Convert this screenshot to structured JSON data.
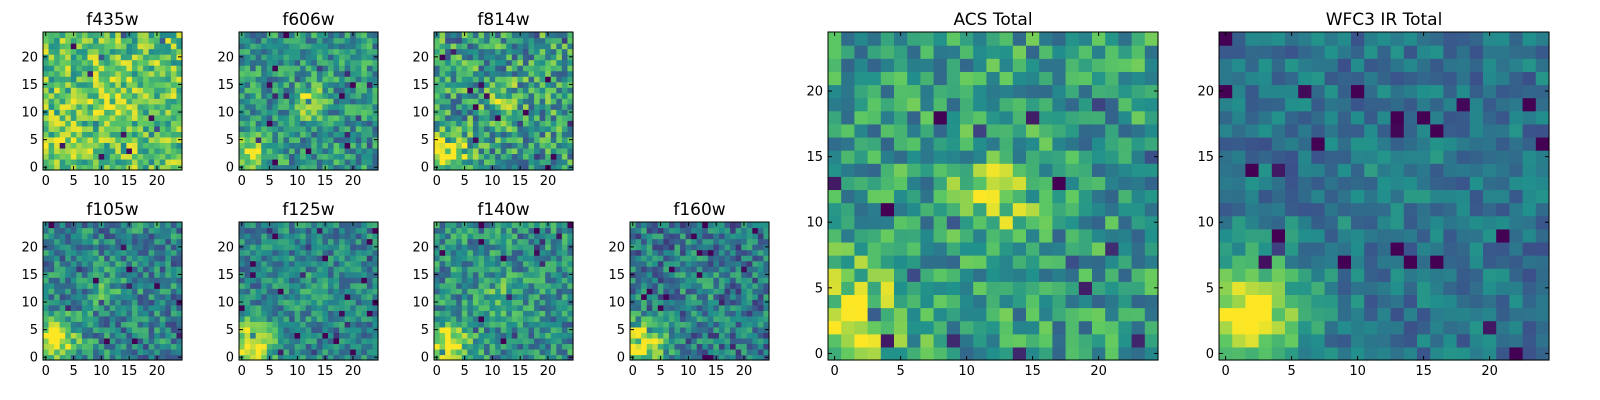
{
  "figure": {
    "background": "#ffffff"
  },
  "colormap": {
    "name": "viridis",
    "stops": [
      "#440154",
      "#3b528b",
      "#21918c",
      "#5ec962",
      "#fde725"
    ]
  },
  "chart_data": [
    {
      "id": "f435w",
      "type": "heatmap",
      "title": "f435w",
      "grid_size": 25,
      "xlim": [
        -0.5,
        24.5
      ],
      "ylim": [
        -0.5,
        24.5
      ],
      "xticks": [
        0,
        5,
        10,
        15,
        20
      ],
      "yticks": [
        0,
        5,
        10,
        15,
        20
      ],
      "value_range": [
        0,
        1
      ],
      "pattern": {
        "base": 0.72,
        "noise": 0.26,
        "blob": {
          "x": 12,
          "y": 12,
          "amp": 0.1,
          "sigma": 3
        },
        "corner": {
          "x": 1.5,
          "y": 2,
          "amp": 0.08,
          "sigma": 3
        },
        "seed": 11
      }
    },
    {
      "id": "f606w",
      "type": "heatmap",
      "title": "f606w",
      "grid_size": 25,
      "xlim": [
        -0.5,
        24.5
      ],
      "ylim": [
        -0.5,
        24.5
      ],
      "xticks": [
        0,
        5,
        10,
        15,
        20
      ],
      "yticks": [
        0,
        5,
        10,
        15,
        20
      ],
      "value_range": [
        0,
        1
      ],
      "pattern": {
        "base": 0.52,
        "noise": 0.24,
        "blob": {
          "x": 12,
          "y": 12,
          "amp": 0.38,
          "sigma": 2
        },
        "corner": {
          "x": 1.5,
          "y": 2.5,
          "amp": 0.42,
          "sigma": 2.5
        },
        "seed": 23
      }
    },
    {
      "id": "f814w",
      "type": "heatmap",
      "title": "f814w",
      "grid_size": 25,
      "xlim": [
        -0.5,
        24.5
      ],
      "ylim": [
        -0.5,
        24.5
      ],
      "xticks": [
        0,
        5,
        10,
        15,
        20
      ],
      "yticks": [
        0,
        5,
        10,
        15,
        20
      ],
      "value_range": [
        0,
        1
      ],
      "pattern": {
        "base": 0.55,
        "noise": 0.3,
        "blob": {
          "x": 12,
          "y": 12,
          "amp": 0.25,
          "sigma": 2.2
        },
        "corner": {
          "x": 1.5,
          "y": 2.5,
          "amp": 0.42,
          "sigma": 2.8
        },
        "seed": 37
      }
    },
    {
      "id": "f105w",
      "type": "heatmap",
      "title": "f105w",
      "grid_size": 25,
      "xlim": [
        -0.5,
        24.5
      ],
      "ylim": [
        -0.5,
        24.5
      ],
      "xticks": [
        0,
        5,
        10,
        15,
        20
      ],
      "yticks": [
        0,
        5,
        10,
        15,
        20
      ],
      "value_range": [
        0,
        1
      ],
      "pattern": {
        "base": 0.45,
        "noise": 0.24,
        "blob": {
          "x": 11,
          "y": 12,
          "amp": 0.15,
          "sigma": 2.5
        },
        "corner": {
          "x": 1.5,
          "y": 3,
          "amp": 0.55,
          "sigma": 3
        },
        "seed": 53
      }
    },
    {
      "id": "f125w",
      "type": "heatmap",
      "title": "f125w",
      "grid_size": 25,
      "xlim": [
        -0.5,
        24.5
      ],
      "ylim": [
        -0.5,
        24.5
      ],
      "xticks": [
        0,
        5,
        10,
        15,
        20
      ],
      "yticks": [
        0,
        5,
        10,
        15,
        20
      ],
      "value_range": [
        0,
        1
      ],
      "pattern": {
        "base": 0.45,
        "noise": 0.2,
        "blob": {
          "x": 12,
          "y": 12,
          "amp": 0.1,
          "sigma": 2.5
        },
        "corner": {
          "x": 1.5,
          "y": 2.5,
          "amp": 0.55,
          "sigma": 3
        },
        "seed": 71
      }
    },
    {
      "id": "f140w",
      "type": "heatmap",
      "title": "f140w",
      "grid_size": 25,
      "xlim": [
        -0.5,
        24.5
      ],
      "ylim": [
        -0.5,
        24.5
      ],
      "xticks": [
        0,
        5,
        10,
        15,
        20
      ],
      "yticks": [
        0,
        5,
        10,
        15,
        20
      ],
      "value_range": [
        0,
        1
      ],
      "pattern": {
        "base": 0.5,
        "noise": 0.24,
        "blob": {
          "x": 12,
          "y": 12,
          "amp": 0.15,
          "sigma": 2.5
        },
        "corner": {
          "x": 1.5,
          "y": 2.5,
          "amp": 0.5,
          "sigma": 3
        },
        "seed": 89
      }
    },
    {
      "id": "f160w",
      "type": "heatmap",
      "title": "f160w",
      "grid_size": 25,
      "xlim": [
        -0.5,
        24.5
      ],
      "ylim": [
        -0.5,
        24.5
      ],
      "xticks": [
        0,
        5,
        10,
        15,
        20
      ],
      "yticks": [
        0,
        5,
        10,
        15,
        20
      ],
      "value_range": [
        0,
        1
      ],
      "pattern": {
        "base": 0.4,
        "noise": 0.24,
        "blob": {
          "x": 12,
          "y": 12,
          "amp": 0.1,
          "sigma": 2.5
        },
        "corner": {
          "x": 1.5,
          "y": 2.5,
          "amp": 0.58,
          "sigma": 3
        },
        "seed": 97
      }
    },
    {
      "id": "acs_total",
      "type": "heatmap",
      "title": "ACS Total",
      "grid_size": 25,
      "xlim": [
        -0.5,
        24.5
      ],
      "ylim": [
        -0.5,
        24.5
      ],
      "xticks": [
        0,
        5,
        10,
        15,
        20
      ],
      "yticks": [
        0,
        5,
        10,
        15,
        20
      ],
      "value_range": [
        0,
        1
      ],
      "pattern": {
        "base": 0.55,
        "noise": 0.24,
        "blob": {
          "x": 12,
          "y": 12,
          "amp": 0.35,
          "sigma": 2
        },
        "corner": {
          "x": 1.5,
          "y": 3,
          "amp": 0.42,
          "sigma": 2.5
        },
        "seed": 131
      }
    },
    {
      "id": "wfc3_ir_total",
      "type": "heatmap",
      "title": "WFC3 IR Total",
      "grid_size": 25,
      "xlim": [
        -0.5,
        24.5
      ],
      "ylim": [
        -0.5,
        24.5
      ],
      "xticks": [
        0,
        5,
        10,
        15,
        20
      ],
      "yticks": [
        0,
        5,
        10,
        15,
        20
      ],
      "value_range": [
        0,
        1
      ],
      "pattern": {
        "base": 0.38,
        "noise": 0.14,
        "blob": {
          "x": 12,
          "y": 13,
          "amp": 0.08,
          "sigma": 3
        },
        "corner": {
          "x": 1.5,
          "y": 3,
          "amp": 0.62,
          "sigma": 3.2
        },
        "seed": 151
      }
    }
  ]
}
